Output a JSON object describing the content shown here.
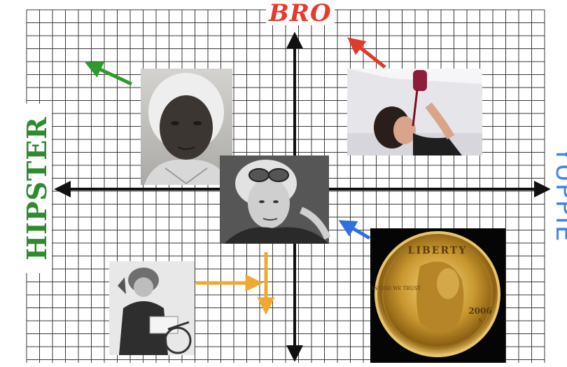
{
  "labels": {
    "top": "BRO",
    "left": "HIPSTER",
    "right": "YUPPIE"
  },
  "colors": {
    "grid_line": "#3a3a3a",
    "axis": "#111111",
    "bro_red": "#e8392c",
    "hipster_green": "#2e8b2e",
    "yuppie_blue": "#3f86e8",
    "arrow_green": "#2f9a2f",
    "arrow_red": "#e03a2a",
    "arrow_blue": "#2f6fe0",
    "arrow_orange": "#f0a830"
  },
  "photos": [
    {
      "name": "photo-woman-bonnet",
      "subject": "woman-in-white-bonnet",
      "tone": "sepia-grayscale"
    },
    {
      "name": "photo-aviator",
      "subject": "aviator-with-goggles",
      "tone": "grayscale"
    },
    {
      "name": "photo-soda-drinker",
      "subject": "woman-drinking-from-bottle",
      "tone": "color"
    },
    {
      "name": "photo-gold-coin",
      "subject": "gold-liberty-dollar-coin",
      "tone": "color"
    },
    {
      "name": "photo-woman-bicycle",
      "subject": "woman-with-bicycle",
      "tone": "grayscale"
    }
  ],
  "coin": {
    "top_text": "LIBERTY",
    "left_text": "IN GOD WE TRUST",
    "year": "2006",
    "mint_mark": "S"
  },
  "arrows": [
    {
      "name": "arrow-green",
      "color": "arrow_green",
      "direction": "up-left"
    },
    {
      "name": "arrow-red",
      "color": "arrow_red",
      "direction": "up-left"
    },
    {
      "name": "arrow-blue",
      "color": "arrow_blue",
      "direction": "up-left"
    },
    {
      "name": "arrow-orange",
      "color": "arrow_orange",
      "direction": "right-then-down"
    }
  ]
}
